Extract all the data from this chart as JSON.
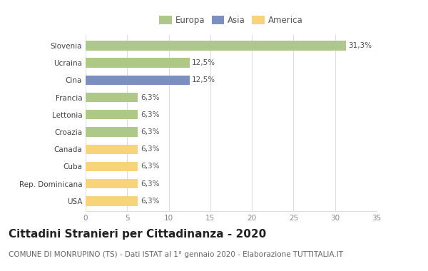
{
  "categories": [
    "Slovenia",
    "Ucraina",
    "Cina",
    "Francia",
    "Lettonia",
    "Croazia",
    "Canada",
    "Cuba",
    "Rep. Dominicana",
    "USA"
  ],
  "values": [
    31.3,
    12.5,
    12.5,
    6.3,
    6.3,
    6.3,
    6.3,
    6.3,
    6.3,
    6.3
  ],
  "labels": [
    "31,3%",
    "12,5%",
    "12,5%",
    "6,3%",
    "6,3%",
    "6,3%",
    "6,3%",
    "6,3%",
    "6,3%",
    "6,3%"
  ],
  "colors": [
    "#aec88a",
    "#aec88a",
    "#7b8fc0",
    "#aec88a",
    "#aec88a",
    "#aec88a",
    "#f7d47a",
    "#f7d47a",
    "#f7d47a",
    "#f7d47a"
  ],
  "legend": [
    {
      "label": "Europa",
      "color": "#aec88a"
    },
    {
      "label": "Asia",
      "color": "#7b8fc0"
    },
    {
      "label": "America",
      "color": "#f7d47a"
    }
  ],
  "xlim": [
    0,
    35
  ],
  "xticks": [
    0,
    5,
    10,
    15,
    20,
    25,
    30,
    35
  ],
  "title": "Cittadini Stranieri per Cittadinanza - 2020",
  "subtitle": "COMUNE DI MONRUPINO (TS) - Dati ISTAT al 1° gennaio 2020 - Elaborazione TUTTITALIA.IT",
  "background_color": "#ffffff",
  "grid_color": "#dddddd",
  "bar_height": 0.55,
  "title_fontsize": 11,
  "subtitle_fontsize": 7.5,
  "label_fontsize": 7.5,
  "tick_fontsize": 7.5,
  "legend_fontsize": 8.5
}
